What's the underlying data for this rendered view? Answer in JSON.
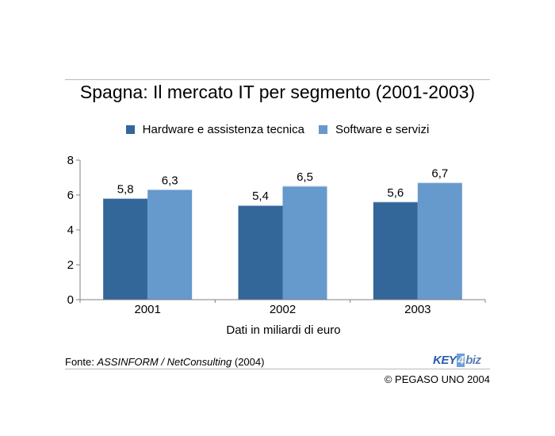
{
  "title": "Spagna: Il mercato IT per segmento (2001-2003)",
  "source": {
    "prefix": "Fonte: ",
    "name": "ASSINFORM / NetConsulting",
    "suffix": " (2004)"
  },
  "copyright": "© PEGASO UNO 2004",
  "logo": {
    "part1": "KEY",
    "part2": "4",
    "part3": "biz"
  },
  "colors": {
    "series1": "#336699",
    "series2": "#6699cc",
    "axis": "#808080"
  },
  "chart_data": {
    "type": "bar",
    "categories": [
      "2001",
      "2002",
      "2003"
    ],
    "series": [
      {
        "name": "Hardware e assistenza tecnica",
        "values": [
          5.8,
          5.4,
          5.6
        ],
        "labels": [
          "5,8",
          "5,4",
          "5,6"
        ]
      },
      {
        "name": "Software e servizi",
        "values": [
          6.3,
          6.5,
          6.7
        ],
        "labels": [
          "6,3",
          "6,5",
          "6,7"
        ]
      }
    ],
    "title": "Spagna: Il mercato IT per segmento (2001-2003)",
    "xlabel": "Dati in miliardi di euro",
    "ylabel": "",
    "ylim": [
      0,
      8
    ],
    "yticks": [
      0,
      2,
      4,
      6,
      8
    ],
    "legend": "top",
    "grid": false
  }
}
